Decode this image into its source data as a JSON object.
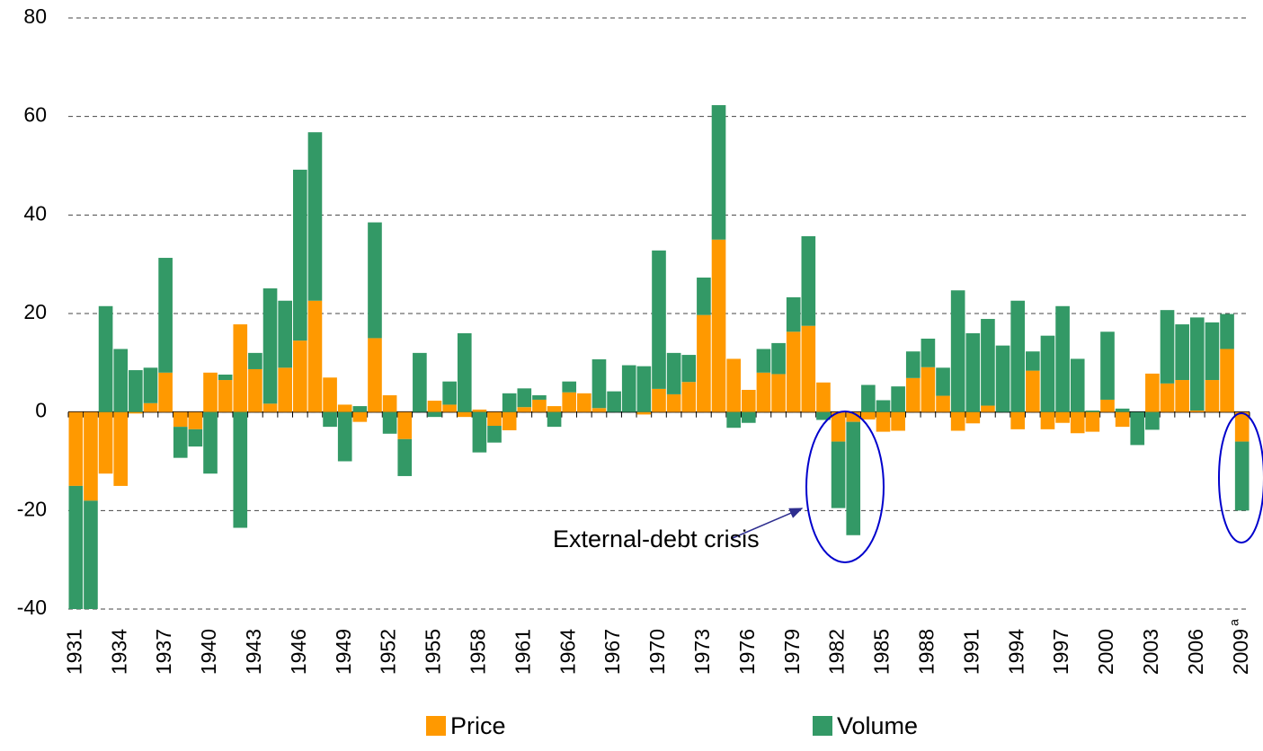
{
  "chart_data": {
    "type": "bar",
    "stacked": true,
    "categories": [
      "1931",
      null,
      null,
      "1934",
      null,
      null,
      "1937",
      null,
      null,
      "1940",
      null,
      null,
      "1943",
      null,
      null,
      "1946",
      null,
      null,
      "1949",
      null,
      null,
      "1952",
      null,
      null,
      "1955",
      null,
      null,
      "1958",
      null,
      null,
      "1961",
      null,
      null,
      "1964",
      null,
      null,
      "1967",
      null,
      null,
      "1970",
      null,
      null,
      "1973",
      null,
      null,
      "1976",
      null,
      null,
      "1979",
      null,
      null,
      "1982",
      null,
      null,
      "1985",
      null,
      null,
      "1988",
      null,
      null,
      "1991",
      null,
      null,
      "1994",
      null,
      null,
      "1997",
      null,
      null,
      "2000",
      null,
      null,
      "2003",
      null,
      null,
      "2006",
      null,
      null,
      "2009"
    ],
    "last_label_superscript": "a",
    "series": [
      {
        "name": "Price",
        "color": "#ff9900",
        "values": [
          -15,
          -18,
          -12.5,
          -15,
          -0.3,
          1.8,
          8,
          -3,
          -3.5,
          8,
          6.5,
          17.8,
          8.7,
          1.7,
          9,
          14.5,
          22.6,
          7,
          1.5,
          -2,
          15,
          3.4,
          -5.5,
          0,
          2.3,
          1.5,
          -1,
          0.5,
          -2.8,
          -3.7,
          1,
          2.5,
          1.2,
          4,
          3.8,
          0.8,
          0,
          0,
          -0.5,
          4.7,
          3.6,
          6.1,
          19.7,
          35,
          10.8,
          4.5,
          8,
          7.7,
          16.3,
          17.5,
          6,
          -6,
          -2,
          -1.5,
          -4,
          -3.8,
          6.9,
          9.1,
          3.3,
          -3.8,
          -2.3,
          1.3,
          0,
          -3.5,
          8.4,
          -3.5,
          -2.2,
          -4.3,
          -4,
          2.5,
          -3,
          0,
          7.8,
          5.8,
          6.5,
          0.3,
          6.5,
          12.8,
          -6
        ]
      },
      {
        "name": "Volume",
        "color": "#339966",
        "values": [
          -25,
          -22,
          21.5,
          12.8,
          8.5,
          7.2,
          23.3,
          -6.3,
          -3.5,
          -12.5,
          1.1,
          -23.5,
          3.3,
          23.4,
          13.6,
          34.7,
          34.2,
          -3,
          -10,
          1.2,
          23.5,
          -4.4,
          -7.5,
          12,
          -1,
          4.7,
          16,
          -8.2,
          -3.4,
          3.8,
          3.8,
          0.9,
          -3,
          2.2,
          0,
          9.9,
          4.2,
          9.5,
          9.3,
          28.1,
          8.4,
          5.5,
          7.6,
          27.3,
          -3.2,
          -2.2,
          4.8,
          6.3,
          7,
          18.2,
          -1.6,
          -13.5,
          -23,
          5.5,
          2.4,
          5.2,
          5.4,
          5.8,
          5.7,
          24.7,
          16,
          17.6,
          13.5,
          22.6,
          3.9,
          15.5,
          21.5,
          10.8,
          0.3,
          13.8,
          0.7,
          -6.7,
          -3.6,
          14.9,
          11.3,
          18.9,
          11.7,
          7.1,
          -14
        ]
      }
    ],
    "ylim": [
      -40,
      80
    ],
    "yticks": [
      -40,
      -20,
      0,
      20,
      40,
      60,
      80
    ],
    "grid": true,
    "annotations": [
      "External-debt crisis"
    ]
  }
}
